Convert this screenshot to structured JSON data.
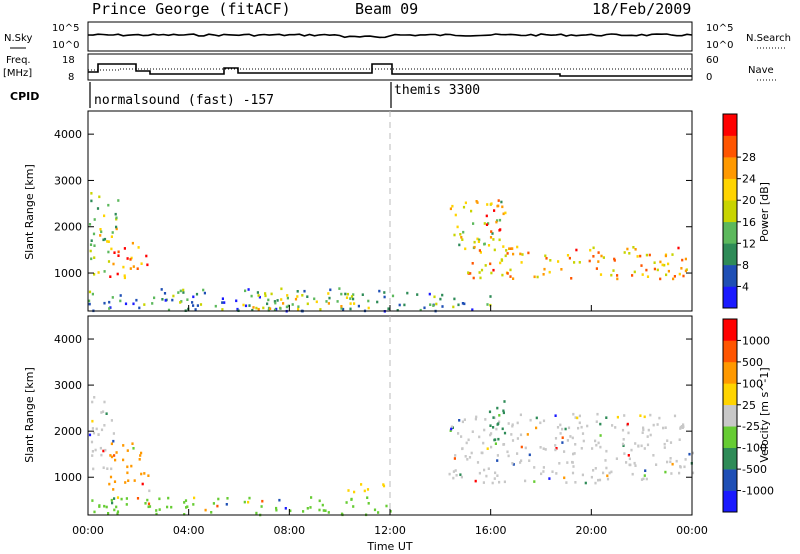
{
  "header": {
    "station": "Prince George (fitACF)",
    "beam": "Beam 09",
    "date": "18/Feb/2009"
  },
  "panels": {
    "nsky": {
      "left_label": "N.Sky",
      "right_label": "N.Search",
      "left_ticks": [
        "10^5",
        "10^0"
      ],
      "right_ticks": [
        "10^5",
        "10^0"
      ]
    },
    "freq": {
      "left_label_1": "Freq.",
      "left_label_2": "[MHz]",
      "left_ticks": [
        "18",
        "8"
      ],
      "right_ticks": [
        "60",
        "0"
      ],
      "right_label": "Nave"
    },
    "cpid": {
      "label": "CPID",
      "programs": [
        "normalsound (fast) -157",
        "themis 3300"
      ]
    }
  },
  "chart_data": [
    {
      "type": "heatmap",
      "name": "power",
      "ylabel": "Slant Range [km]",
      "ylim": [
        180,
        4500
      ],
      "yticks": [
        1000,
        2000,
        3000,
        4000
      ],
      "xlim": [
        0,
        24
      ],
      "colorbar_label": "Power [dB]",
      "colorbar_ticks": [
        "4",
        "8",
        "12",
        "16",
        "20",
        "24",
        "28"
      ],
      "colormap": [
        "#1a1aff",
        "#1f4fb5",
        "#2e8b57",
        "#5cb85c",
        "#c8d400",
        "#ffd400",
        "#ff9900",
        "#ff5500",
        "#ff0000"
      ],
      "regions": [
        {
          "t0": 0.0,
          "t1": 1.2,
          "r0": 1000,
          "r1": 2800,
          "intensity": 0.45
        },
        {
          "t0": 0.8,
          "t1": 2.4,
          "r0": 900,
          "r1": 1700,
          "intensity": 0.85
        },
        {
          "t0": 0.0,
          "t1": 12.0,
          "r0": 200,
          "r1": 700,
          "intensity": 0.25
        },
        {
          "t0": 6.0,
          "t1": 11.5,
          "r0": 200,
          "r1": 600,
          "intensity": 0.55
        },
        {
          "t0": 14.3,
          "t1": 16.6,
          "r0": 1500,
          "r1": 2600,
          "intensity": 0.55
        },
        {
          "t0": 15.8,
          "t1": 16.6,
          "r0": 1800,
          "r1": 2600,
          "intensity": 0.9
        },
        {
          "t0": 15.0,
          "t1": 24.0,
          "r0": 900,
          "r1": 1600,
          "intensity": 0.7
        },
        {
          "t0": 12.0,
          "t1": 16.0,
          "r0": 200,
          "r1": 600,
          "intensity": 0.3
        }
      ]
    },
    {
      "type": "heatmap",
      "name": "velocity",
      "ylabel": "Slant Range [km]",
      "ylim": [
        180,
        4500
      ],
      "yticks": [
        1000,
        2000,
        3000,
        4000
      ],
      "xlim": [
        0,
        24
      ],
      "xlabel": "Time UT",
      "xticks": [
        "00:00",
        "04:00",
        "08:00",
        "12:00",
        "16:00",
        "20:00",
        "00:00"
      ],
      "colorbar_label": "Velocity [m s^-1]",
      "colorbar_ticks": [
        "1000",
        "500",
        "100",
        "25",
        "-25",
        "-100",
        "-500",
        "-1000"
      ],
      "colormap": [
        "#1a1aff",
        "#1f4fb5",
        "#2e8b57",
        "#66cc33",
        "#c8c8c8",
        "#ffd400",
        "#ff9900",
        "#ff5500",
        "#ff0000"
      ],
      "regions": [
        {
          "t0": 0.0,
          "t1": 1.0,
          "r0": 1000,
          "r1": 2800,
          "vel": "#c8c8c8"
        },
        {
          "t0": 0.8,
          "t1": 2.4,
          "r0": 700,
          "r1": 1800,
          "vel": "#ff9900"
        },
        {
          "t0": 0.0,
          "t1": 12.0,
          "r0": 200,
          "r1": 600,
          "vel": "#66cc33"
        },
        {
          "t0": 14.3,
          "t1": 24.0,
          "r0": 900,
          "r1": 2400,
          "vel": "#c8c8c8"
        },
        {
          "t0": 15.8,
          "t1": 16.8,
          "r0": 1800,
          "r1": 2700,
          "vel": "#2e8b57"
        },
        {
          "t0": 10.0,
          "t1": 12.0,
          "r0": 700,
          "r1": 900,
          "vel": "#ffd400"
        }
      ]
    }
  ]
}
